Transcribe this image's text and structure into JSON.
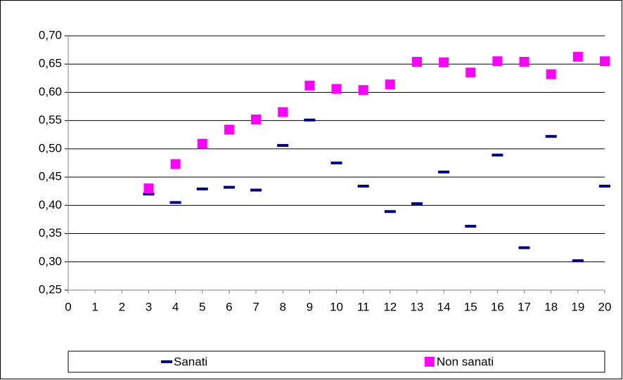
{
  "chart_data": {
    "type": "scatter",
    "x": [
      3,
      4,
      5,
      6,
      7,
      8,
      9,
      10,
      11,
      12,
      13,
      14,
      15,
      16,
      17,
      18,
      19,
      20
    ],
    "series": [
      {
        "name": "Sanati",
        "color": "#000080",
        "marker": "dash",
        "values": [
          0.42,
          0.405,
          0.429,
          0.432,
          0.427,
          0.506,
          0.551,
          0.475,
          0.434,
          0.389,
          0.403,
          0.459,
          0.363,
          0.489,
          0.325,
          0.522,
          0.302,
          0.434
        ]
      },
      {
        "name": "Non sanati",
        "color": "#ff00ff",
        "marker": "square",
        "values": [
          0.43,
          0.473,
          0.509,
          0.534,
          0.552,
          0.565,
          0.612,
          0.606,
          0.604,
          0.614,
          0.654,
          0.653,
          0.635,
          0.655,
          0.654,
          0.632,
          0.663,
          0.655
        ]
      }
    ],
    "xlim": [
      0,
      20
    ],
    "xticks": [
      0,
      1,
      2,
      3,
      4,
      5,
      6,
      7,
      8,
      9,
      10,
      11,
      12,
      13,
      14,
      15,
      16,
      17,
      18,
      19,
      20
    ],
    "ylim": [
      0.25,
      0.7
    ],
    "yticks": [
      {
        "value": 0.25,
        "label": "0,25"
      },
      {
        "value": 0.3,
        "label": "0,30"
      },
      {
        "value": 0.35,
        "label": "0,35"
      },
      {
        "value": 0.4,
        "label": "0,40"
      },
      {
        "value": 0.45,
        "label": "0,45"
      },
      {
        "value": 0.5,
        "label": "0,50"
      },
      {
        "value": 0.55,
        "label": "0,55"
      },
      {
        "value": 0.6,
        "label": "0,60"
      },
      {
        "value": 0.65,
        "label": "0,65"
      },
      {
        "value": 0.7,
        "label": "0,70"
      }
    ],
    "grid": true,
    "legend": "bottom"
  }
}
